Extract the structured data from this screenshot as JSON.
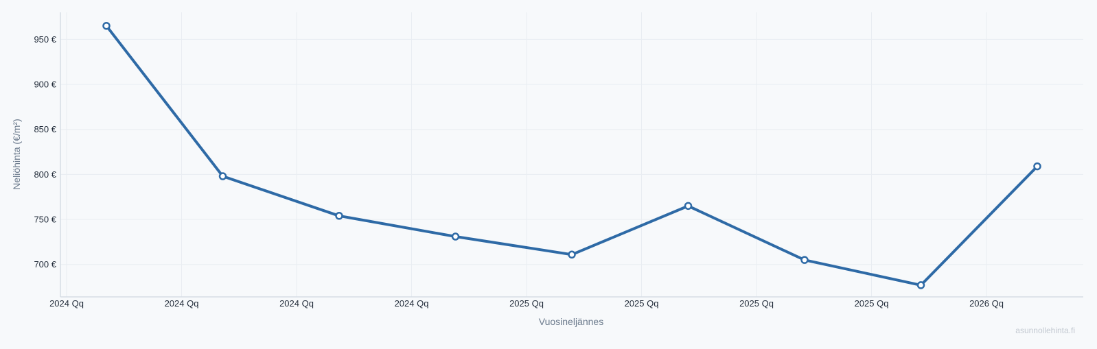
{
  "colors": {
    "background": "#f7f9fb",
    "line": "#2e6aa6",
    "grid": "#e9edf2",
    "axis": "#d6dde5"
  },
  "watermark": "asunnollehinta.fi",
  "chart_data": {
    "type": "line",
    "xlabel": "Vuosineljännes",
    "ylabel": "Neliöhinta (€/m²)",
    "x_tick_labels": [
      "2024 Qq",
      "2024 Qq",
      "2024 Qq",
      "2024 Qq",
      "2025 Qq",
      "2025 Qq",
      "2025 Qq",
      "2025 Qq",
      "2026 Qq"
    ],
    "y_ticks": [
      700,
      750,
      800,
      850,
      900,
      950
    ],
    "y_tick_labels": [
      "700 €",
      "750 €",
      "800 €",
      "850 €",
      "900 €",
      "950 €"
    ],
    "ylim": [
      664,
      980
    ],
    "grid": true,
    "legend": "none",
    "series": [
      {
        "values": [
          965,
          798,
          754,
          731,
          711,
          765,
          705,
          677,
          809
        ]
      }
    ]
  }
}
